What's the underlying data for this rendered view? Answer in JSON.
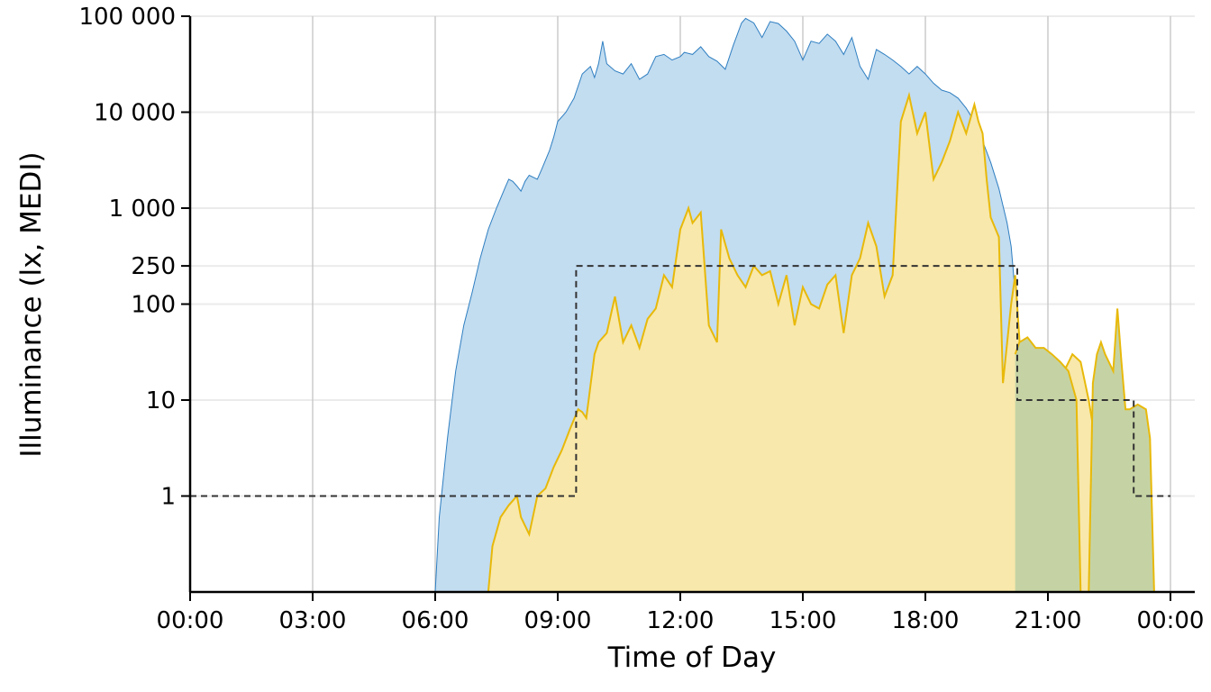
{
  "chart_data": {
    "type": "area",
    "title": "",
    "xlabel": "Time of Day",
    "ylabel": "Illuminance (lx, MEDI)",
    "yscale": "log",
    "ylim": [
      0.1,
      100000
    ],
    "xlim_hours": [
      0,
      24.5
    ],
    "grid": {
      "x_major": true,
      "y_major": true
    },
    "x_ticks": [
      {
        "hour": 0,
        "label": "00:00"
      },
      {
        "hour": 3,
        "label": "03:00"
      },
      {
        "hour": 6,
        "label": "06:00"
      },
      {
        "hour": 9,
        "label": "09:00"
      },
      {
        "hour": 12,
        "label": "12:00"
      },
      {
        "hour": 15,
        "label": "15:00"
      },
      {
        "hour": 18,
        "label": "18:00"
      },
      {
        "hour": 21,
        "label": "21:00"
      },
      {
        "hour": 24,
        "label": "00:00"
      }
    ],
    "y_ticks": [
      {
        "value": 1,
        "label": "1"
      },
      {
        "value": 10,
        "label": "10"
      },
      {
        "value": 100,
        "label": "100"
      },
      {
        "value": 250,
        "label": "250"
      },
      {
        "value": 1000,
        "label": "1 000"
      },
      {
        "value": 10000,
        "label": "10 000"
      },
      {
        "value": 100000,
        "label": "100 000"
      }
    ],
    "series": [
      {
        "style": "blue-filled-area",
        "fill": "#c2dcf0",
        "stroke": "#2f7fc1",
        "points": [
          [
            6.0,
            0.1
          ],
          [
            6.1,
            0.6
          ],
          [
            6.3,
            4
          ],
          [
            6.5,
            20
          ],
          [
            6.7,
            60
          ],
          [
            6.9,
            130
          ],
          [
            7.1,
            300
          ],
          [
            7.3,
            600
          ],
          [
            7.5,
            1000
          ],
          [
            7.7,
            1600
          ],
          [
            7.8,
            2000
          ],
          [
            7.9,
            1900
          ],
          [
            8.0,
            1700
          ],
          [
            8.1,
            1500
          ],
          [
            8.2,
            1900
          ],
          [
            8.3,
            2200
          ],
          [
            8.5,
            2000
          ],
          [
            8.6,
            2500
          ],
          [
            8.8,
            4000
          ],
          [
            8.9,
            5500
          ],
          [
            9.0,
            8000
          ],
          [
            9.2,
            10000
          ],
          [
            9.4,
            14000
          ],
          [
            9.6,
            25000
          ],
          [
            9.8,
            30000
          ],
          [
            9.9,
            23000
          ],
          [
            10.0,
            32000
          ],
          [
            10.1,
            55000
          ],
          [
            10.2,
            32000
          ],
          [
            10.4,
            27000
          ],
          [
            10.6,
            25000
          ],
          [
            10.8,
            32000
          ],
          [
            11.0,
            22000
          ],
          [
            11.2,
            25000
          ],
          [
            11.4,
            38000
          ],
          [
            11.6,
            40000
          ],
          [
            11.8,
            35000
          ],
          [
            12.0,
            38000
          ],
          [
            12.1,
            42000
          ],
          [
            12.3,
            40000
          ],
          [
            12.5,
            48000
          ],
          [
            12.7,
            38000
          ],
          [
            12.9,
            34000
          ],
          [
            13.1,
            28000
          ],
          [
            13.3,
            50000
          ],
          [
            13.5,
            85000
          ],
          [
            13.6,
            95000
          ],
          [
            13.8,
            85000
          ],
          [
            14.0,
            60000
          ],
          [
            14.2,
            88000
          ],
          [
            14.4,
            84000
          ],
          [
            14.6,
            70000
          ],
          [
            14.8,
            55000
          ],
          [
            15.0,
            35000
          ],
          [
            15.2,
            55000
          ],
          [
            15.4,
            52000
          ],
          [
            15.6,
            65000
          ],
          [
            15.8,
            55000
          ],
          [
            16.0,
            40000
          ],
          [
            16.2,
            60000
          ],
          [
            16.4,
            30000
          ],
          [
            16.6,
            22000
          ],
          [
            16.8,
            45000
          ],
          [
            17.0,
            40000
          ],
          [
            17.2,
            35000
          ],
          [
            17.4,
            30000
          ],
          [
            17.6,
            25000
          ],
          [
            17.8,
            30000
          ],
          [
            18.0,
            25000
          ],
          [
            18.2,
            20000
          ],
          [
            18.4,
            17000
          ],
          [
            18.6,
            16000
          ],
          [
            18.8,
            14000
          ],
          [
            19.0,
            11000
          ],
          [
            19.2,
            8000
          ],
          [
            19.4,
            5000
          ],
          [
            19.6,
            3000
          ],
          [
            19.8,
            1600
          ],
          [
            20.0,
            700
          ],
          [
            20.1,
            400
          ],
          [
            20.3,
            40
          ],
          [
            20.5,
            4
          ],
          [
            20.7,
            0.4
          ],
          [
            20.9,
            0.1
          ]
        ]
      },
      {
        "style": "yellow-filled-area",
        "fill": "#f8e8ab",
        "stroke": "#e8b90a",
        "points": [
          [
            7.3,
            0.1
          ],
          [
            7.4,
            0.3
          ],
          [
            7.6,
            0.6
          ],
          [
            7.8,
            0.8
          ],
          [
            8.0,
            1.0
          ],
          [
            8.1,
            0.6
          ],
          [
            8.3,
            0.4
          ],
          [
            8.5,
            1.0
          ],
          [
            8.7,
            1.2
          ],
          [
            8.9,
            2.0
          ],
          [
            9.1,
            3.0
          ],
          [
            9.3,
            5.0
          ],
          [
            9.5,
            8.0
          ],
          [
            9.6,
            7.5
          ],
          [
            9.7,
            6.5
          ],
          [
            9.9,
            30
          ],
          [
            10.0,
            40
          ],
          [
            10.2,
            50
          ],
          [
            10.4,
            120
          ],
          [
            10.6,
            40
          ],
          [
            10.8,
            60
          ],
          [
            11.0,
            35
          ],
          [
            11.2,
            70
          ],
          [
            11.4,
            90
          ],
          [
            11.6,
            200
          ],
          [
            11.8,
            150
          ],
          [
            12.0,
            600
          ],
          [
            12.2,
            1000
          ],
          [
            12.3,
            700
          ],
          [
            12.5,
            900
          ],
          [
            12.7,
            60
          ],
          [
            12.9,
            40
          ],
          [
            13.0,
            600
          ],
          [
            13.2,
            300
          ],
          [
            13.4,
            200
          ],
          [
            13.6,
            150
          ],
          [
            13.8,
            250
          ],
          [
            14.0,
            200
          ],
          [
            14.2,
            220
          ],
          [
            14.4,
            100
          ],
          [
            14.6,
            200
          ],
          [
            14.8,
            60
          ],
          [
            15.0,
            150
          ],
          [
            15.2,
            100
          ],
          [
            15.4,
            90
          ],
          [
            15.6,
            160
          ],
          [
            15.8,
            200
          ],
          [
            16.0,
            50
          ],
          [
            16.2,
            200
          ],
          [
            16.4,
            300
          ],
          [
            16.6,
            700
          ],
          [
            16.8,
            400
          ],
          [
            17.0,
            120
          ],
          [
            17.2,
            200
          ],
          [
            17.4,
            8000
          ],
          [
            17.6,
            15000
          ],
          [
            17.8,
            6000
          ],
          [
            18.0,
            10000
          ],
          [
            18.2,
            2000
          ],
          [
            18.4,
            3000
          ],
          [
            18.6,
            5000
          ],
          [
            18.8,
            10000
          ],
          [
            19.0,
            6000
          ],
          [
            19.2,
            12000
          ],
          [
            19.3,
            8000
          ],
          [
            19.4,
            6000
          ],
          [
            19.5,
            2000
          ],
          [
            19.6,
            800
          ],
          [
            19.8,
            500
          ],
          [
            19.9,
            15
          ],
          [
            20.1,
            100
          ],
          [
            20.2,
            200
          ],
          [
            20.4,
            10
          ],
          [
            20.6,
            15
          ],
          [
            20.8,
            20
          ],
          [
            21.0,
            22
          ],
          [
            21.2,
            10
          ],
          [
            21.4,
            20
          ],
          [
            21.6,
            30
          ],
          [
            21.8,
            25
          ],
          [
            22.0,
            10
          ],
          [
            22.2,
            3
          ],
          [
            22.4,
            1
          ],
          [
            22.6,
            0.1
          ]
        ]
      },
      {
        "style": "olive-filled-area",
        "fill": "#c5d3a4",
        "stroke": "#e8b90a",
        "points": [
          [
            20.2,
            30
          ],
          [
            20.3,
            40
          ],
          [
            20.5,
            45
          ],
          [
            20.7,
            35
          ],
          [
            20.9,
            35
          ],
          [
            21.1,
            30
          ],
          [
            21.3,
            25
          ],
          [
            21.5,
            20
          ],
          [
            21.7,
            10
          ],
          [
            21.8,
            0.1
          ],
          [
            22.0,
            0.1
          ],
          [
            22.1,
            15
          ],
          [
            22.2,
            30
          ],
          [
            22.3,
            40
          ],
          [
            22.4,
            30
          ],
          [
            22.6,
            20
          ],
          [
            22.7,
            90
          ],
          [
            22.8,
            25
          ],
          [
            22.9,
            8
          ],
          [
            23.0,
            8
          ],
          [
            23.2,
            9
          ],
          [
            23.4,
            8
          ],
          [
            23.5,
            4
          ],
          [
            23.6,
            0.1
          ]
        ]
      },
      {
        "style": "dashed-step",
        "stroke": "#333333",
        "points": [
          [
            0.0,
            1
          ],
          [
            9.45,
            1
          ],
          [
            9.45,
            250
          ],
          [
            20.25,
            250
          ],
          [
            20.25,
            10
          ],
          [
            23.1,
            10
          ],
          [
            23.1,
            1
          ],
          [
            24.0,
            1
          ]
        ]
      }
    ]
  }
}
